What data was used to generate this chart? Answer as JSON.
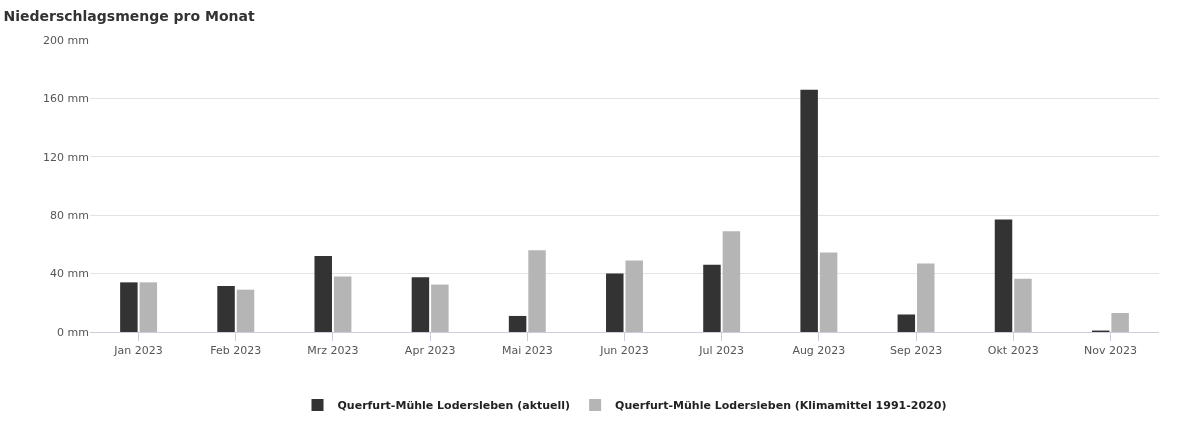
{
  "chart_data": {
    "type": "bar",
    "title": "Niederschlagsmenge pro Monat",
    "categories": [
      "Jan 2023",
      "Feb 2023",
      "Mrz 2023",
      "Apr 2023",
      "Mai 2023",
      "Jun 2023",
      "Jul 2023",
      "Aug 2023",
      "Sep 2023",
      "Okt 2023",
      "Nov 2023"
    ],
    "series": [
      {
        "name": "Querfurt-Mühle Lodersleben (aktuell)",
        "color": "#333333",
        "values": [
          34,
          31.5,
          52,
          37.5,
          11,
          40,
          46,
          166,
          12,
          77,
          1
        ]
      },
      {
        "name": "Querfurt-Mühle Lodersleben (Klimamittel 1991-2020)",
        "color": "#b5b5b5",
        "values": [
          34,
          29,
          38,
          32.5,
          56,
          49,
          69,
          54.5,
          47,
          36.5,
          13
        ]
      }
    ],
    "ylim": [
      0,
      200
    ],
    "yticks": [
      {
        "value": 0,
        "label": "0 mm"
      },
      {
        "value": 40,
        "label": "40 mm"
      },
      {
        "value": 80,
        "label": "80 mm"
      },
      {
        "value": 120,
        "label": "120 mm"
      },
      {
        "value": 160,
        "label": "160 mm"
      },
      {
        "value": 200,
        "label": "200 mm"
      }
    ],
    "grid": "y",
    "legend": "bottom"
  }
}
